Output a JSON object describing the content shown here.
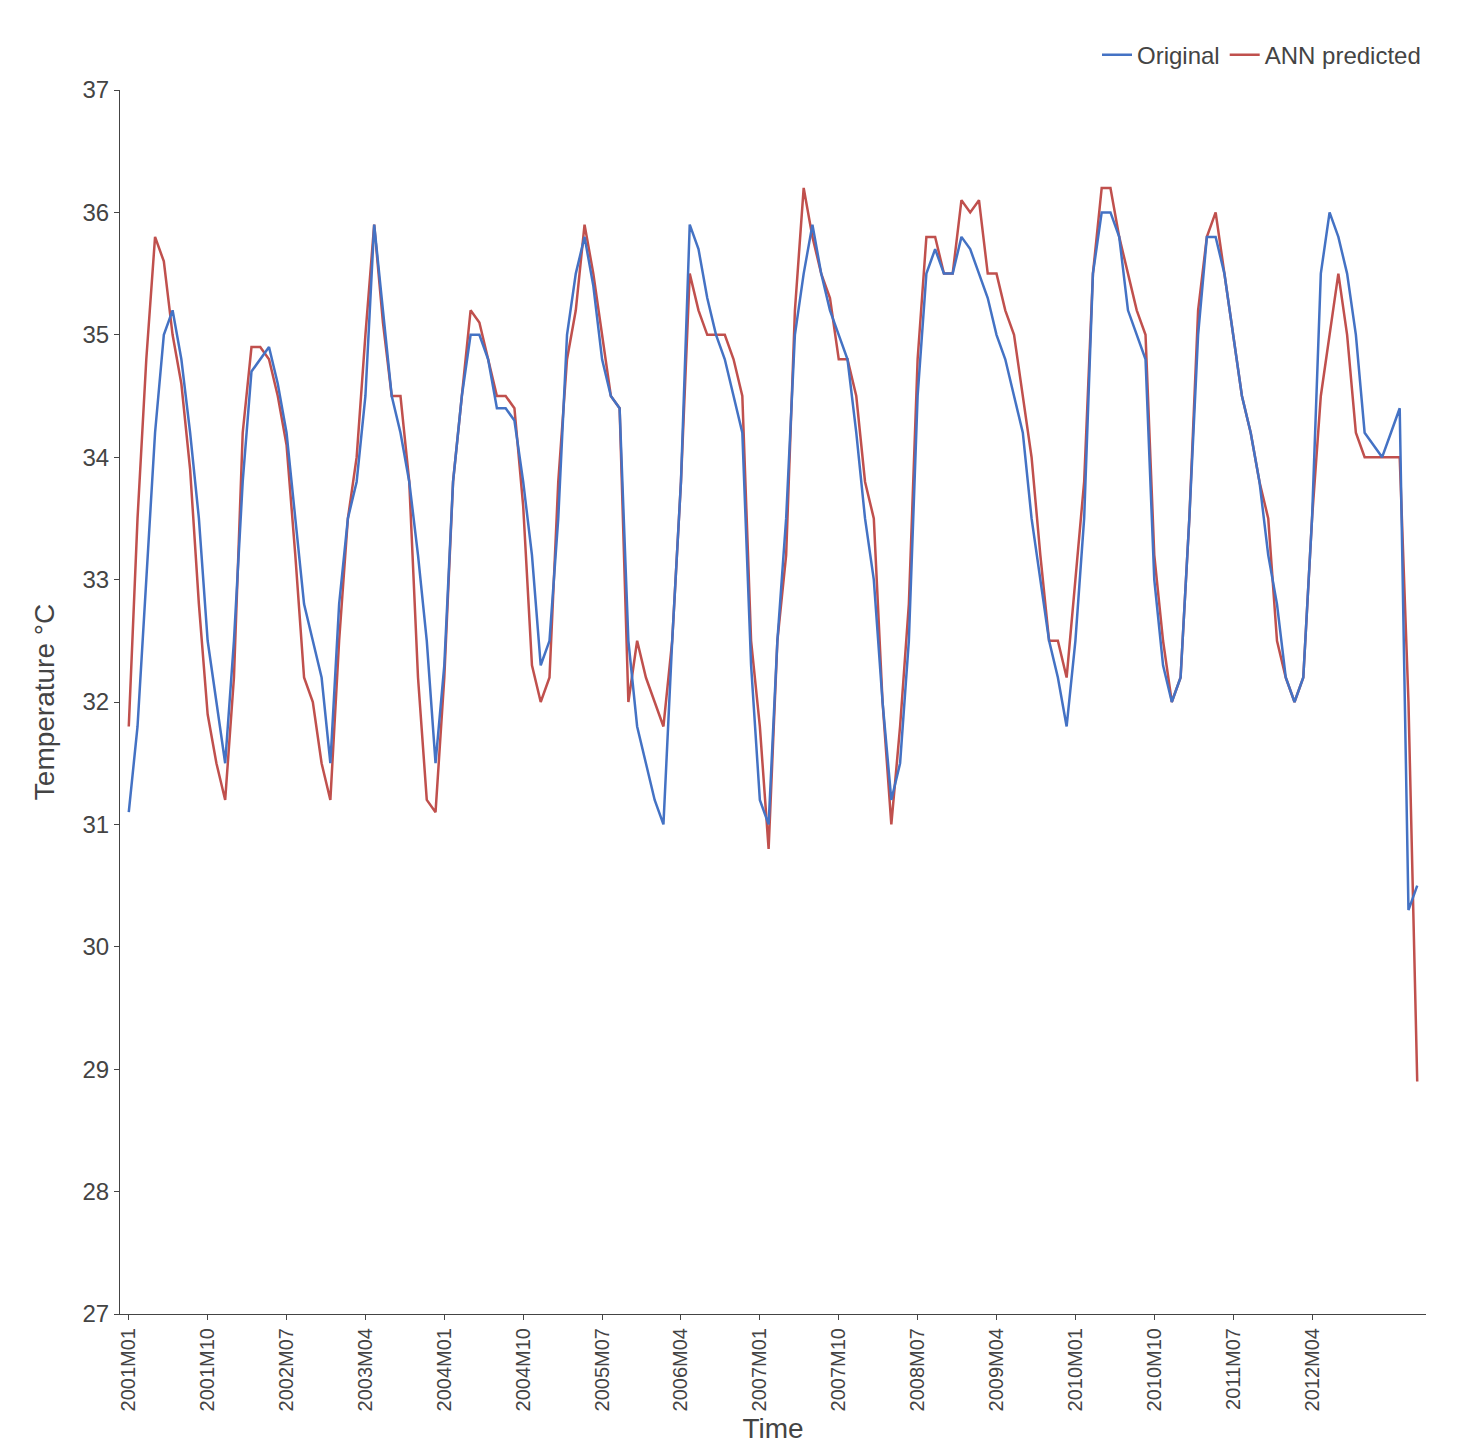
{
  "chart_data": {
    "type": "line",
    "xlabel": "Time",
    "ylabel": "Temperature °C",
    "ylim": [
      27,
      37
    ],
    "yticks": [
      27,
      28,
      29,
      30,
      31,
      32,
      33,
      34,
      35,
      36,
      37
    ],
    "grid": false,
    "legend": "upper right",
    "categories": [
      "2001M01",
      null,
      null,
      null,
      null,
      null,
      null,
      null,
      null,
      "2001M10",
      null,
      null,
      null,
      null,
      null,
      null,
      null,
      null,
      "2002M07",
      null,
      null,
      null,
      null,
      null,
      null,
      null,
      null,
      "2003M04",
      null,
      null,
      null,
      null,
      null,
      null,
      null,
      null,
      "2004M01",
      null,
      null,
      null,
      null,
      null,
      null,
      null,
      null,
      "2004M10",
      null,
      null,
      null,
      null,
      null,
      null,
      null,
      null,
      "2005M07",
      null,
      null,
      null,
      null,
      null,
      null,
      null,
      null,
      "2006M04",
      null,
      null,
      null,
      null,
      null,
      null,
      null,
      null,
      "2007M01",
      null,
      null,
      null,
      null,
      null,
      null,
      null,
      null,
      "2007M10",
      null,
      null,
      null,
      null,
      null,
      null,
      null,
      null,
      "2008M07",
      null,
      null,
      null,
      null,
      null,
      null,
      null,
      null,
      "2009M04",
      null,
      null,
      null,
      null,
      null,
      null,
      null,
      null,
      "2010M01",
      null,
      null,
      null,
      null,
      null,
      null,
      null,
      null,
      "2010M10",
      null,
      null,
      null,
      null,
      null,
      null,
      null,
      null,
      "2011M07",
      null,
      null,
      null,
      null,
      null,
      null,
      null,
      null,
      "2012M04",
      null,
      null,
      null,
      null,
      null,
      null,
      null,
      null,
      null,
      null,
      null,
      null
    ],
    "series": [
      {
        "name": "Original",
        "color": "#4472C4",
        "values": [
          31.1,
          31.8,
          33.0,
          34.2,
          35.0,
          35.2,
          34.8,
          34.2,
          33.5,
          32.5,
          32.0,
          31.5,
          32.5,
          33.8,
          34.7,
          34.8,
          34.9,
          34.6,
          34.2,
          33.5,
          32.8,
          32.5,
          32.2,
          31.5,
          32.8,
          33.5,
          33.8,
          34.5,
          35.9,
          35.2,
          34.5,
          34.2,
          33.8,
          33.2,
          32.5,
          31.5,
          32.3,
          33.8,
          34.5,
          35.0,
          35.0,
          34.8,
          34.4,
          34.4,
          34.3,
          33.8,
          33.2,
          32.3,
          32.5,
          33.5,
          35.0,
          35.5,
          35.8,
          35.4,
          34.8,
          34.5,
          34.4,
          32.5,
          31.8,
          31.5,
          31.2,
          31.0,
          32.5,
          33.8,
          35.9,
          35.7,
          35.3,
          35.0,
          34.8,
          34.5,
          34.2,
          32.3,
          31.2,
          31.0,
          32.5,
          33.5,
          35.0,
          35.5,
          35.9,
          35.5,
          35.2,
          35.0,
          34.8,
          34.2,
          33.5,
          33.0,
          32.0,
          31.2,
          31.5,
          32.5,
          34.5,
          35.5,
          35.7,
          35.5,
          35.5,
          35.8,
          35.7,
          35.5,
          35.3,
          35.0,
          34.8,
          34.5,
          34.2,
          33.5,
          33.0,
          32.5,
          32.2,
          31.8,
          32.5,
          33.5,
          35.5,
          36.0,
          36.0,
          35.8,
          35.2,
          35.0,
          34.8,
          33.0,
          32.3,
          32.0,
          32.2,
          33.5,
          35.0,
          35.8,
          35.8,
          35.5,
          35.0,
          34.5,
          34.2,
          33.8,
          33.2,
          32.8,
          32.2,
          32.0,
          32.2,
          33.5,
          35.5,
          36.0,
          35.8,
          35.5,
          35.0,
          34.2,
          34.1,
          34.0,
          34.2,
          34.4,
          30.3,
          30.5
        ]
      },
      {
        "name": "ANN predicted",
        "color": "#C0504D",
        "values": [
          31.8,
          33.5,
          34.8,
          35.8,
          35.6,
          35.0,
          34.6,
          33.9,
          32.8,
          31.9,
          31.5,
          31.2,
          32.2,
          34.2,
          34.9,
          34.9,
          34.8,
          34.5,
          34.1,
          33.2,
          32.2,
          32.0,
          31.5,
          31.2,
          32.5,
          33.5,
          34.0,
          35.0,
          35.9,
          35.1,
          34.5,
          34.5,
          33.8,
          32.2,
          31.2,
          31.1,
          32.2,
          33.8,
          34.5,
          35.2,
          35.1,
          34.8,
          34.5,
          34.5,
          34.4,
          33.6,
          32.3,
          32.0,
          32.2,
          33.8,
          34.8,
          35.2,
          35.9,
          35.5,
          35.0,
          34.5,
          34.4,
          32.0,
          32.5,
          32.2,
          32.0,
          31.8,
          32.5,
          33.8,
          35.5,
          35.2,
          35.0,
          35.0,
          35.0,
          34.8,
          34.5,
          32.5,
          31.8,
          30.8,
          32.5,
          33.2,
          35.2,
          36.2,
          35.8,
          35.5,
          35.3,
          34.8,
          34.8,
          34.5,
          33.8,
          33.5,
          32.0,
          31.0,
          31.8,
          32.8,
          34.8,
          35.8,
          35.8,
          35.5,
          35.5,
          36.1,
          36.0,
          36.1,
          35.5,
          35.5,
          35.2,
          35.0,
          34.5,
          34.0,
          33.2,
          32.5,
          32.5,
          32.2,
          33.0,
          33.8,
          35.5,
          36.2,
          36.2,
          35.8,
          35.5,
          35.2,
          35.0,
          33.2,
          32.5,
          32.0,
          32.2,
          33.5,
          35.2,
          35.8,
          36.0,
          35.5,
          35.0,
          34.5,
          34.2,
          33.8,
          33.5,
          32.5,
          32.2,
          32.0,
          32.2,
          33.5,
          34.5,
          35.0,
          35.5,
          35.0,
          34.2,
          34.0,
          34.0,
          34.0,
          34.0,
          34.0,
          32.0,
          28.9
        ]
      }
    ]
  }
}
